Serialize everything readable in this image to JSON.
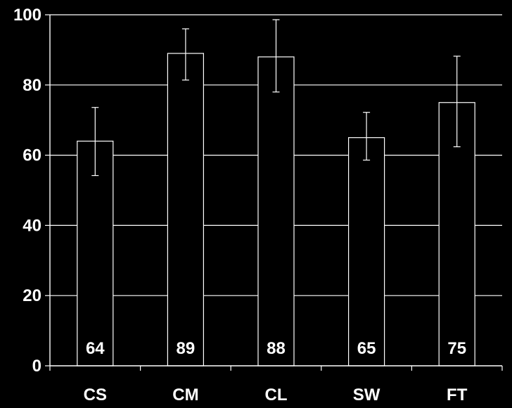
{
  "chart_data": {
    "type": "bar",
    "title": "",
    "xlabel": "",
    "ylabel": "",
    "ylim": [
      0,
      100
    ],
    "yticks": [
      0,
      20,
      40,
      60,
      80,
      100
    ],
    "grid": true,
    "categories": [
      "CS",
      "CM",
      "CL",
      "SW",
      "FT"
    ],
    "values": [
      64,
      89,
      88,
      65,
      75
    ],
    "data_labels": [
      "64",
      "89",
      "88",
      "65",
      "75"
    ],
    "error_bars": [
      {
        "low": 54.2,
        "high": 73.6
      },
      {
        "low": 81.4,
        "high": 96.0
      },
      {
        "low": 78.0,
        "high": 98.6
      },
      {
        "low": 58.6,
        "high": 72.2
      },
      {
        "low": 62.4,
        "high": 88.2
      }
    ]
  },
  "colors": {
    "background": "#000000",
    "foreground": "#ffffff",
    "bar_fill": "#000000"
  }
}
